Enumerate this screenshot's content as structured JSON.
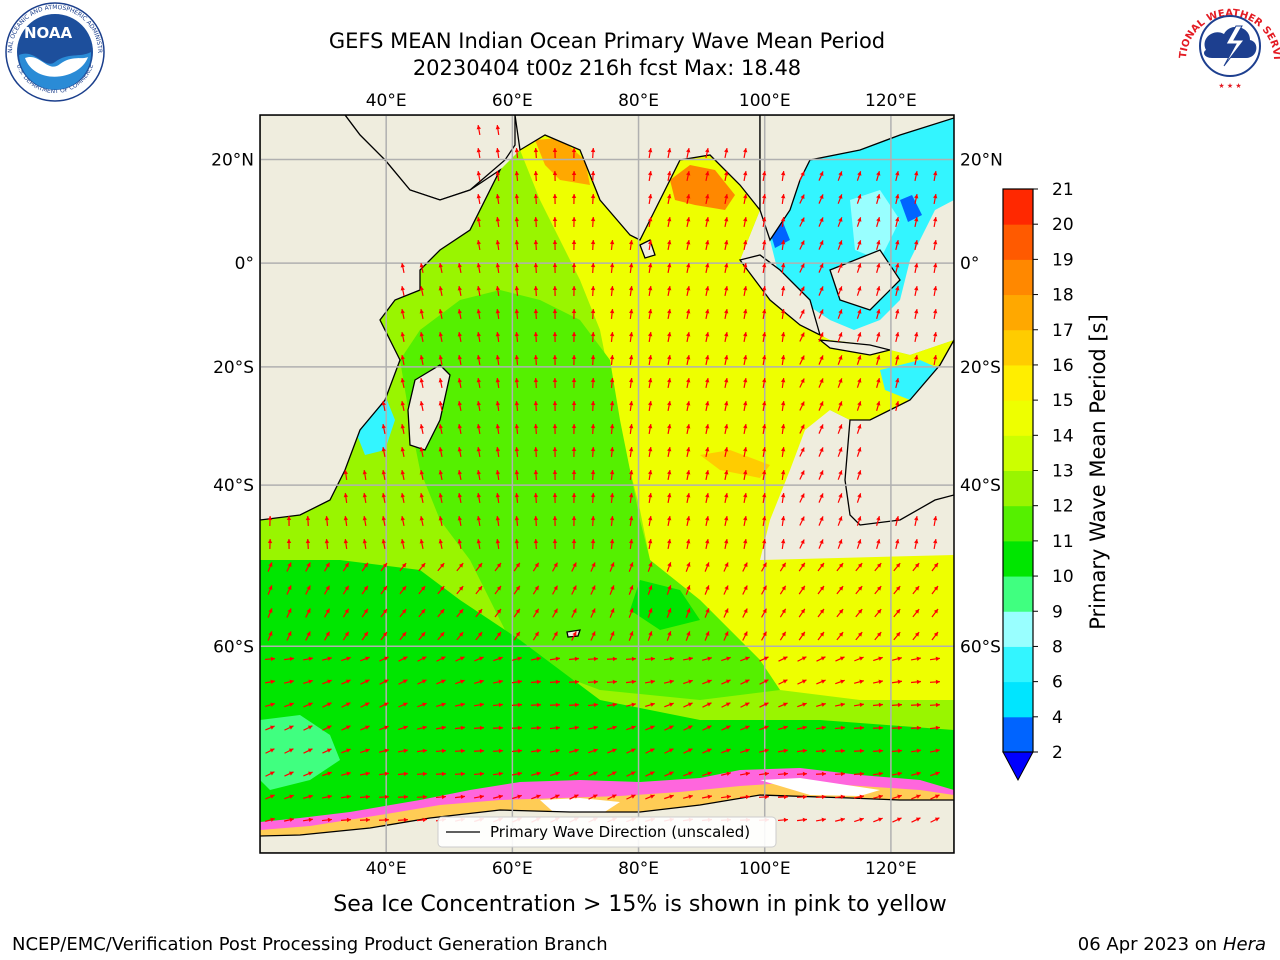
{
  "title": {
    "line1": "GEFS MEAN Indian Ocean Primary Wave Mean Period",
    "line2": "20230404 t00z 216h fcst   Max: 18.48"
  },
  "map": {
    "lon_range": [
      20,
      130
    ],
    "lat_range": [
      -75,
      28
    ],
    "lon_ticks": [
      "40°E",
      "60°E",
      "80°E",
      "100°E",
      "120°E"
    ],
    "lat_ticks": [
      "20°N",
      "0°",
      "20°S",
      "40°S",
      "60°S"
    ],
    "land_color": "#efedde",
    "arrow_color": "#ff0000",
    "legend_label": "Primary Wave Direction (unscaled)"
  },
  "colorbar": {
    "label": "Primary Wave Mean Period [s]",
    "ticks": [
      "2",
      "4",
      "6",
      "8",
      "9",
      "10",
      "11",
      "12",
      "13",
      "14",
      "15",
      "16",
      "17",
      "18",
      "19",
      "20",
      "21"
    ],
    "colors": [
      "#0064ff",
      "#00e5ff",
      "#33f5ff",
      "#99ffff",
      "#40ff80",
      "#00e600",
      "#55f000",
      "#99f500",
      "#ccff00",
      "#eeff00",
      "#ffee00",
      "#ffcc00",
      "#ffa800",
      "#ff8800",
      "#ff5a00",
      "#ff2800"
    ],
    "under_color": "#0000ff"
  },
  "subtitle": "Sea Ice Concentration > 15% is shown in pink to yellow",
  "footer": {
    "left": "NCEP/EMC/Verification Post Processing Product Generation Branch",
    "right_date": "06 Apr 2023 on ",
    "right_host": "Hera"
  },
  "logos": {
    "noaa": "NOAA",
    "noaa_ring_top": "NATIONAL OCEANIC AND ATMOSPHERIC ADMINISTRATION",
    "noaa_ring_bottom": "U.S. DEPARTMENT OF COMMERCE",
    "nws_ring": "NATIONAL WEATHER SERVICE"
  }
}
